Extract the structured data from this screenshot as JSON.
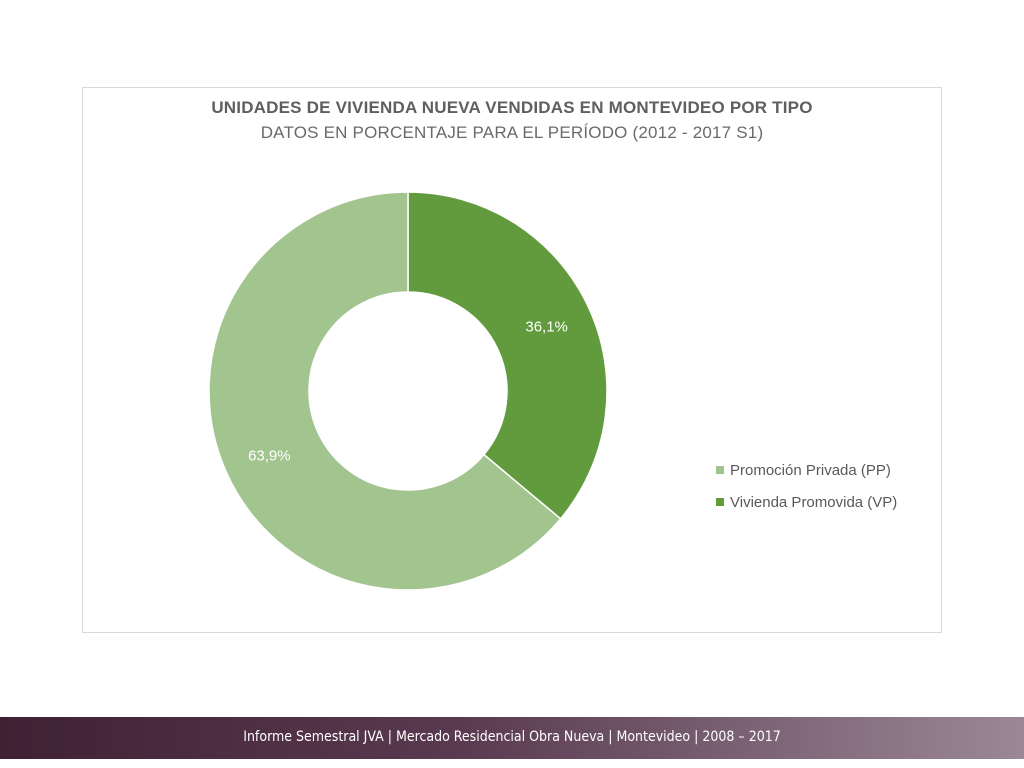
{
  "chart_data": {
    "type": "pie",
    "title": "UNIDADES DE VIVIENDA NUEVA VENDIDAS EN MONTEVIDEO POR TIPO",
    "subtitle": "DATOS EN PORCENTAJE PARA EL PERÍODO (2012 - 2017 S1)",
    "donut": true,
    "categories": [
      "Promoción Privada (PP)",
      "Vivienda Promovida (VP)"
    ],
    "values": [
      63.9,
      36.1
    ],
    "labels": [
      "63,9%",
      "36,1%"
    ],
    "colors": [
      "#a2c590",
      "#629b3e"
    ],
    "legend_position": "right"
  },
  "footer": {
    "text": "Informe Semestral JVA | Mercado Residencial Obra Nueva | Montevideo | 2008 – 2017"
  }
}
